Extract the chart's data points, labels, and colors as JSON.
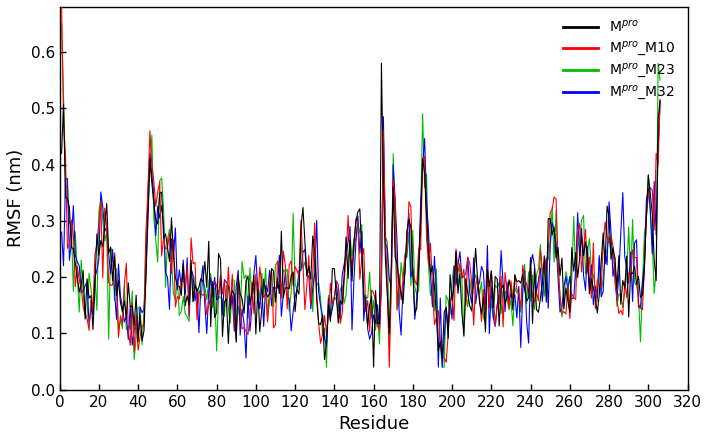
{
  "title": "",
  "xlabel": "Residue",
  "ylabel": "RMSF (nm)",
  "xlim": [
    0,
    320
  ],
  "ylim": [
    0,
    0.68
  ],
  "xticks": [
    0,
    20,
    40,
    60,
    80,
    100,
    120,
    140,
    160,
    180,
    200,
    220,
    240,
    260,
    280,
    300,
    320
  ],
  "yticks": [
    0,
    0.1,
    0.2,
    0.3,
    0.4,
    0.5,
    0.6
  ],
  "colors": {
    "black": "#000000",
    "red": "#ff0000",
    "green": "#00bb00",
    "blue": "#0000ff"
  },
  "legend": [
    {
      "label": "M$^{pro}$",
      "color": "#000000"
    },
    {
      "label": "M$^{pro}$_M10",
      "color": "#ff0000"
    },
    {
      "label": "M$^{pro}$_M23",
      "color": "#00bb00"
    },
    {
      "label": "M$^{pro}$_M32",
      "color": "#0000ff"
    }
  ],
  "linewidth": 0.8,
  "figsize": [
    7.09,
    4.4
  ],
  "dpi": 100
}
